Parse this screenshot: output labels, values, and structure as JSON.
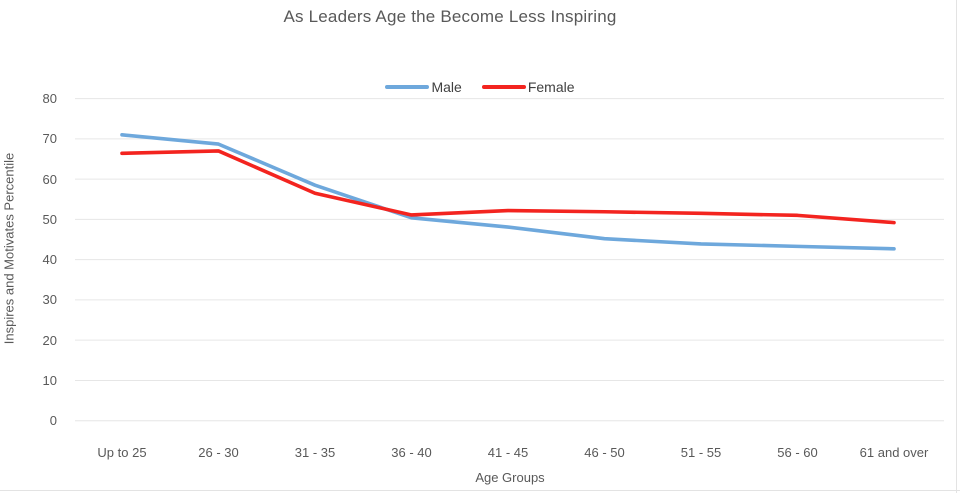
{
  "chart_data": {
    "type": "line",
    "title": "As Leaders Age the Become Less Inspiring",
    "xlabel": "Age Groups",
    "ylabel": "Inspires and Motivates Percentile",
    "categories": [
      "Up to 25",
      "26 - 30",
      "31 - 35",
      "36 - 40",
      "41 - 45",
      "46 - 50",
      "51 - 55",
      "56 - 60",
      "61 and over"
    ],
    "series": [
      {
        "name": "Male",
        "color": "#6EA8DC",
        "values": [
          71.0,
          68.7,
          58.5,
          50.4,
          48.1,
          45.2,
          43.9,
          43.3,
          42.7
        ]
      },
      {
        "name": "Female",
        "color": "#F3241F",
        "values": [
          66.4,
          67.0,
          56.5,
          51.1,
          52.2,
          51.9,
          51.5,
          51.0,
          49.2
        ]
      }
    ],
    "ylim": [
      0,
      80
    ],
    "yticks": [
      0,
      10,
      20,
      30,
      40,
      50,
      60,
      70,
      80
    ],
    "grid": "horizontal-only",
    "legend_position": "top-center",
    "colors": {
      "gridline": "#e6e6e6",
      "title_text": "#595959",
      "axis_text": "#595959",
      "legend_text": "#404040"
    }
  }
}
